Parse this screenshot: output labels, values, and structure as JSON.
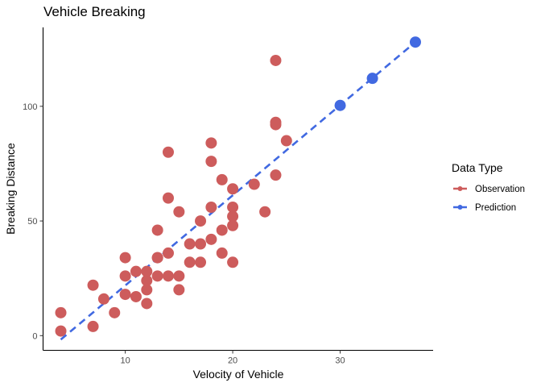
{
  "chart_data": {
    "type": "scatter",
    "title": "Vehicle Breaking",
    "xlabel": "Velocity of Vehicle",
    "ylabel": "Breaking Distance",
    "xlim": [
      2.35,
      38.65
    ],
    "ylim": [
      -6.4,
      134.4
    ],
    "x_ticks": [
      10,
      20,
      30
    ],
    "y_ticks": [
      0,
      50,
      100
    ],
    "grid": false,
    "legend": {
      "title": "Data Type",
      "position": "right",
      "entries": [
        {
          "label": "Observation",
          "color": "#CD5C5C"
        },
        {
          "label": "Prediction",
          "color": "#4169E1"
        }
      ]
    },
    "series": [
      {
        "name": "Observation",
        "color": "#CD5C5C",
        "points": [
          [
            4,
            2
          ],
          [
            4,
            10
          ],
          [
            7,
            4
          ],
          [
            7,
            22
          ],
          [
            8,
            16
          ],
          [
            9,
            10
          ],
          [
            10,
            18
          ],
          [
            10,
            26
          ],
          [
            10,
            34
          ],
          [
            11,
            17
          ],
          [
            11,
            28
          ],
          [
            12,
            14
          ],
          [
            12,
            20
          ],
          [
            12,
            24
          ],
          [
            12,
            28
          ],
          [
            13,
            26
          ],
          [
            13,
            34
          ],
          [
            13,
            34
          ],
          [
            13,
            46
          ],
          [
            14,
            26
          ],
          [
            14,
            36
          ],
          [
            14,
            60
          ],
          [
            14,
            80
          ],
          [
            15,
            20
          ],
          [
            15,
            26
          ],
          [
            15,
            54
          ],
          [
            16,
            32
          ],
          [
            16,
            40
          ],
          [
            17,
            32
          ],
          [
            17,
            40
          ],
          [
            17,
            50
          ],
          [
            18,
            42
          ],
          [
            18,
            56
          ],
          [
            18,
            76
          ],
          [
            18,
            84
          ],
          [
            19,
            36
          ],
          [
            19,
            46
          ],
          [
            19,
            68
          ],
          [
            20,
            32
          ],
          [
            20,
            48
          ],
          [
            20,
            52
          ],
          [
            20,
            56
          ],
          [
            20,
            64
          ],
          [
            22,
            66
          ],
          [
            23,
            54
          ],
          [
            24,
            70
          ],
          [
            24,
            92
          ],
          [
            24,
            93
          ],
          [
            24,
            120
          ],
          [
            25,
            85
          ]
        ]
      },
      {
        "name": "Prediction",
        "color": "#4169E1",
        "points": [
          [
            30,
            100.4
          ],
          [
            33,
            112.2
          ],
          [
            37,
            128
          ]
        ],
        "line": [
          [
            4,
            -1.7
          ],
          [
            37,
            128
          ]
        ]
      }
    ]
  }
}
